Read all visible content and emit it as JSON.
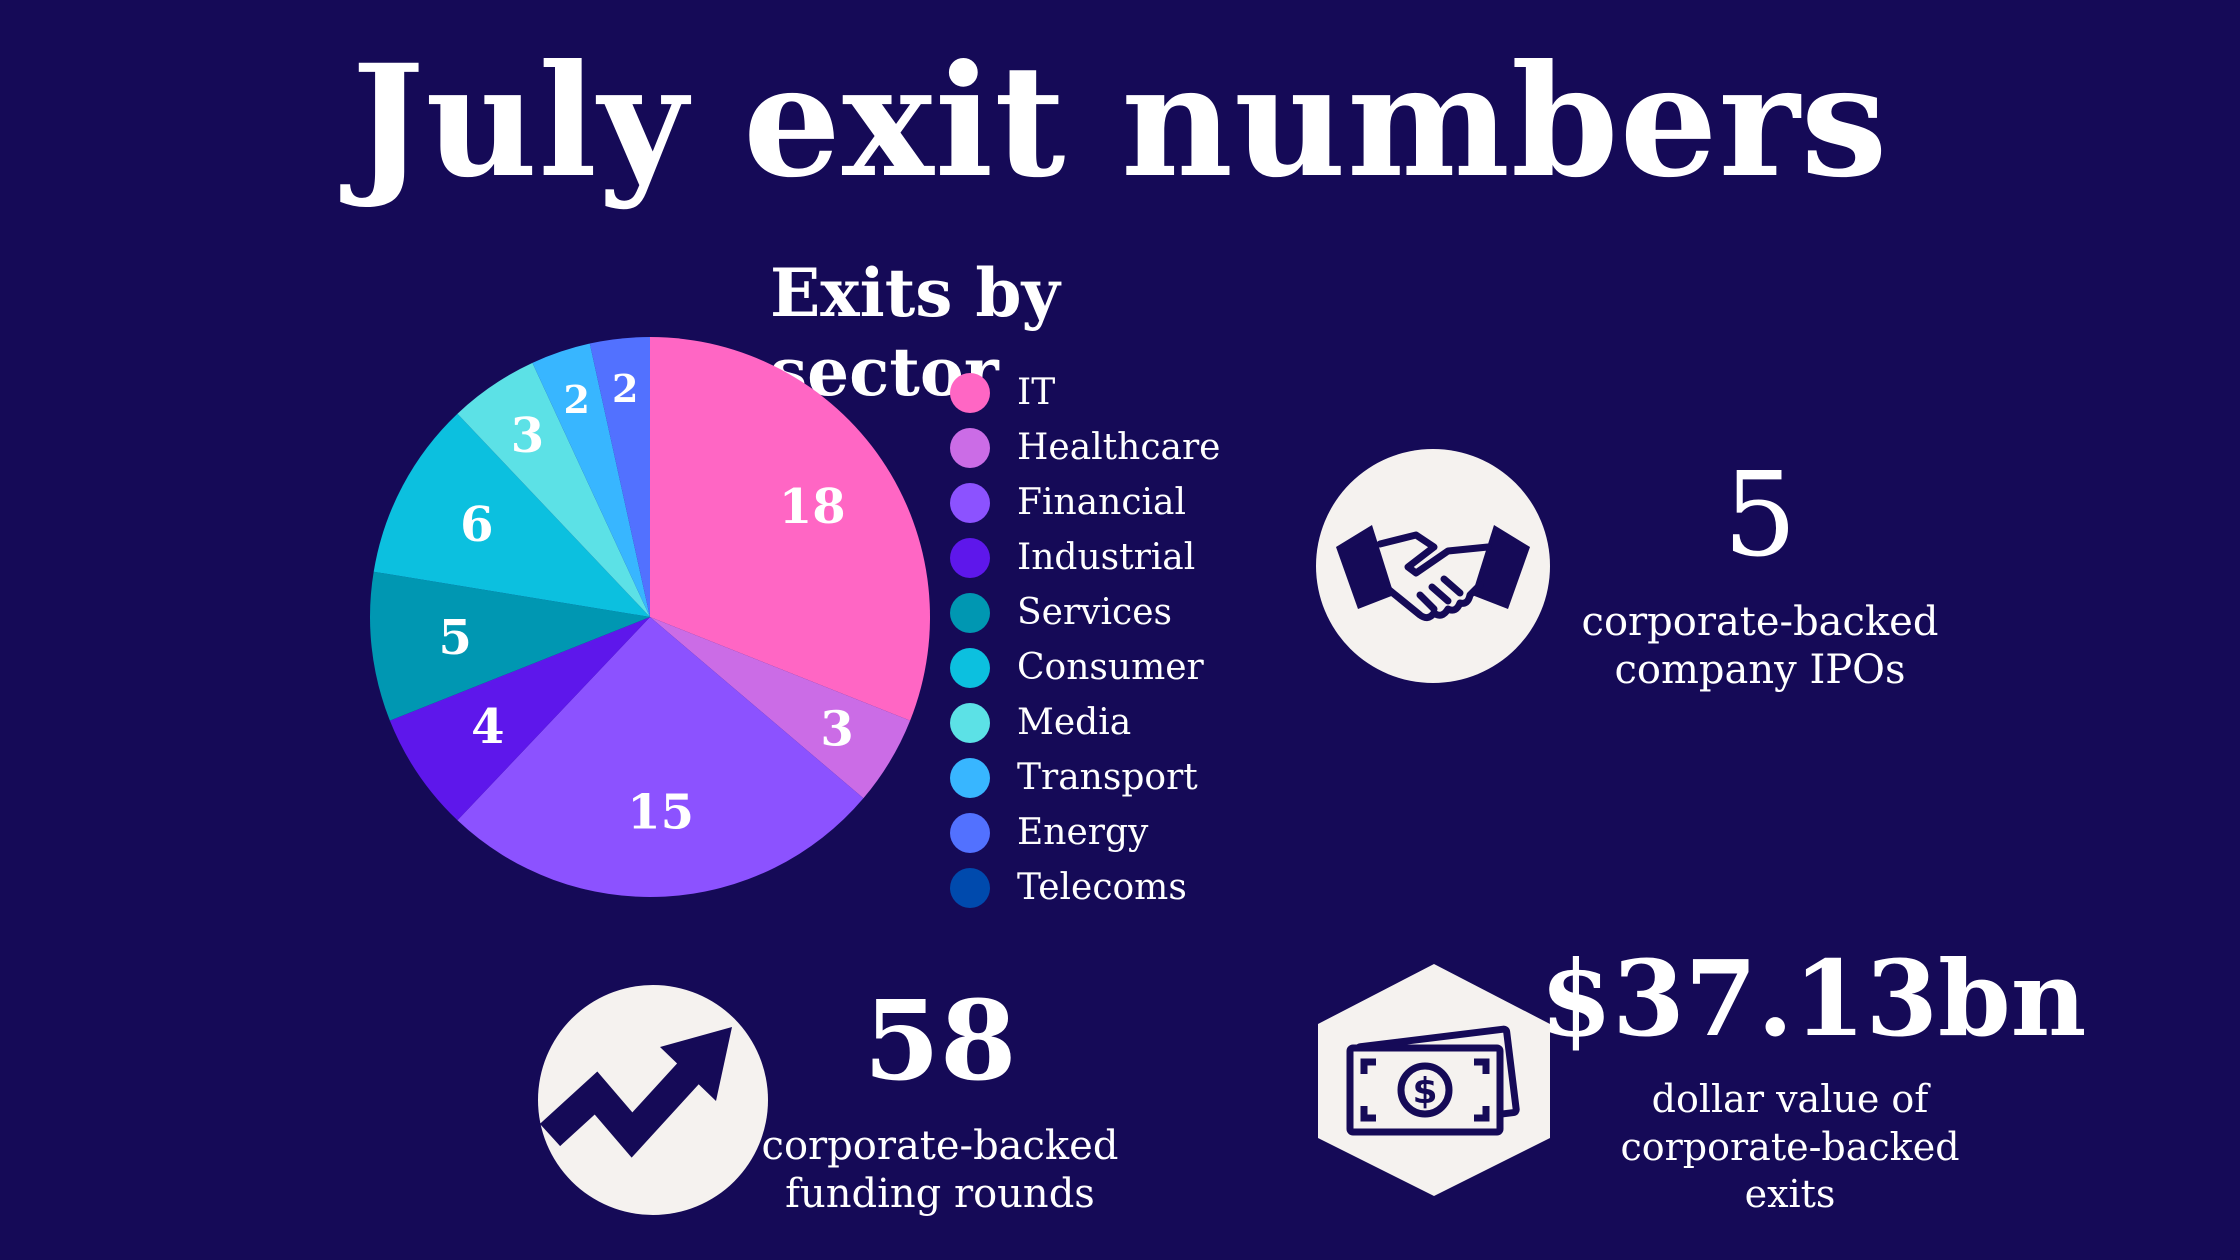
{
  "title": "July exit numbers",
  "chart_data": {
    "type": "pie",
    "title": "Exits by sector",
    "legend_position": "right",
    "categories": [
      "IT",
      "Healthcare",
      "Financial",
      "Industrial",
      "Services",
      "Consumer",
      "Media",
      "Transport",
      "Energy",
      "Telecoms"
    ],
    "values": [
      18,
      3,
      15,
      4,
      5,
      6,
      3,
      2,
      2,
      0
    ],
    "colors": [
      "#ff66c4",
      "#cb6ce6",
      "#8c52ff",
      "#5e17eb",
      "#0097b2",
      "#0cc0df",
      "#5ce1e6",
      "#38b6ff",
      "#5271ff",
      "#004aad"
    ]
  },
  "stats": {
    "ipos": {
      "value": "5",
      "description_line1": "corporate-backed",
      "description_line2": "company IPOs",
      "icon": "handshake-icon"
    },
    "funding": {
      "value": "58",
      "description_line1": "corporate-backed",
      "description_line2": "funding rounds",
      "icon": "trend-up-arrow-icon"
    },
    "dollar": {
      "value": "$37.13bn",
      "description_line1": "dollar value of",
      "description_line2": "corporate-backed",
      "description_line3": "exits",
      "icon": "money-bill-icon"
    }
  },
  "colors": {
    "background": "#150a57",
    "icon_fill": "#f5f2ef",
    "icon_ink": "#150a57"
  }
}
